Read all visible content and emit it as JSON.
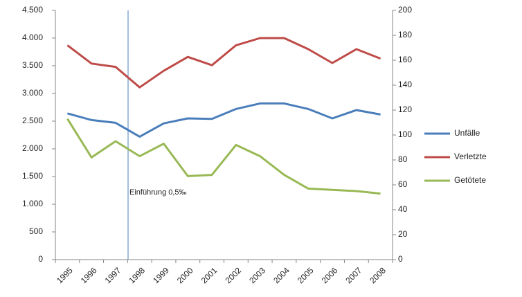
{
  "chart_data": {
    "type": "line",
    "categories": [
      "1995",
      "1996",
      "1997",
      "1998",
      "1999",
      "2000",
      "2001",
      "2002",
      "2003",
      "2004",
      "2005",
      "2006",
      "2007",
      "2008"
    ],
    "series": [
      {
        "name": "Unfälle",
        "color": "#4a7ebb",
        "values": [
          2640,
          2520,
          2470,
          2220,
          2460,
          2550,
          2540,
          2720,
          2820,
          2820,
          2720,
          2550,
          2700,
          2620
        ]
      },
      {
        "name": "Verletzte",
        "color": "#be4b48",
        "values": [
          3870,
          3540,
          3480,
          3110,
          3410,
          3660,
          3510,
          3870,
          4000,
          4000,
          3800,
          3550,
          3800,
          3630
        ]
      },
      {
        "name": "Getötete",
        "color": "#98b954",
        "axis": "y2",
        "values": [
          113,
          82,
          95,
          83,
          93,
          67,
          68,
          92,
          83,
          68,
          57,
          56,
          55,
          53
        ]
      }
    ],
    "ylim": [
      0,
      4500
    ],
    "yticks": [
      0,
      500,
      {
        "value": 1000,
        "label": "1.000"
      },
      {
        "value": 1500,
        "label": "1.500"
      },
      {
        "value": 2000,
        "label": "2.000"
      },
      {
        "value": 2500,
        "label": "2.500"
      },
      {
        "value": 3000,
        "label": "3.000"
      },
      {
        "value": 3500,
        "label": "3.500"
      },
      {
        "value": 4000,
        "label": "4.000"
      },
      {
        "value": 4500,
        "label": "4.500"
      }
    ],
    "y2lim": [
      0,
      200
    ],
    "y2ticks": [
      0,
      20,
      40,
      60,
      80,
      100,
      120,
      140,
      160,
      180,
      200
    ],
    "annotation": "Einführung 0,5‰",
    "legend": "right"
  }
}
